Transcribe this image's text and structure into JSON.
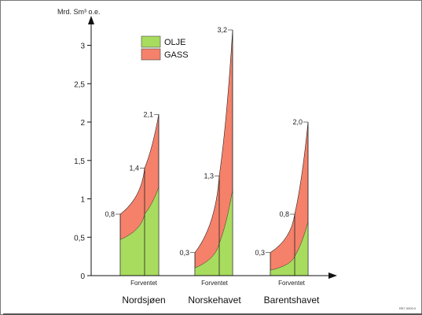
{
  "chart_data": {
    "type": "area",
    "title": "",
    "ylabel": "Mrd. Sm³ o.e.",
    "xlabel": "",
    "ylim": [
      0,
      3.4
    ],
    "yticks": [
      0,
      0.5,
      1,
      1.5,
      2,
      2.5,
      3
    ],
    "ytick_labels": [
      "0",
      "0,5",
      "1",
      "1,5",
      "2",
      "2,5",
      "3"
    ],
    "series": [
      {
        "name": "OLJE",
        "color": "#a8dc5e"
      },
      {
        "name": "GASS",
        "color": "#f5816a"
      }
    ],
    "groups": [
      {
        "name": "Nordsjøen",
        "sublabel": "Forventet",
        "low": 0.8,
        "expected": 1.4,
        "high": 2.1,
        "low_label": "0,8",
        "expected_label": "1,4",
        "high_label": "2,1",
        "oil_low": 0.47,
        "oil_expected": 0.8,
        "oil_high": 1.15
      },
      {
        "name": "Norskehavet",
        "sublabel": "Forventet",
        "low": 0.3,
        "expected": 1.3,
        "high": 3.2,
        "low_label": "0,3",
        "expected_label": "1,3",
        "high_label": "3,2",
        "oil_low": 0.1,
        "oil_expected": 0.42,
        "oil_high": 1.12
      },
      {
        "name": "Barentshavet",
        "sublabel": "Forventet",
        "low": 0.3,
        "expected": 0.8,
        "high": 2.0,
        "low_label": "0,3",
        "expected_label": "0,8",
        "high_label": "2,0",
        "oil_low": 0.07,
        "oil_expected": 0.25,
        "oil_high": 0.7
      }
    ],
    "legend_position": "top-center",
    "grid": false
  },
  "source_code": "RE7.0000.0",
  "colors": {
    "oil": "#a8dc5e",
    "gas": "#f5816a",
    "axis": "#111111"
  }
}
